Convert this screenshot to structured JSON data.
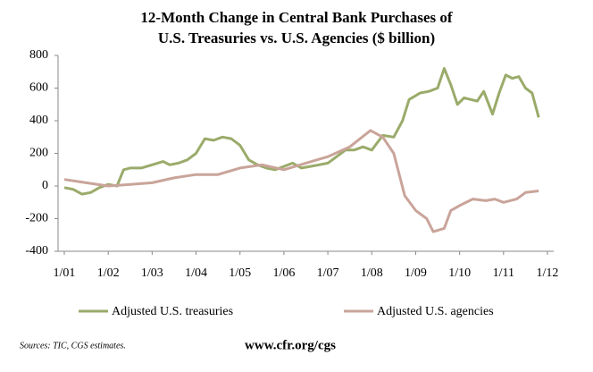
{
  "chart_data": {
    "type": "line",
    "title": "12-Month Change in Central Bank Purchases of",
    "subtitle": "U.S. Treasuries vs. U.S. Agencies ($ billion)",
    "xlim": [
      2001,
      2012
    ],
    "xticks": [
      {
        "value": 2001,
        "label": "1/01"
      },
      {
        "value": 2002,
        "label": "1/02"
      },
      {
        "value": 2003,
        "label": "1/03"
      },
      {
        "value": 2004,
        "label": "1/04"
      },
      {
        "value": 2005,
        "label": "1/05"
      },
      {
        "value": 2006,
        "label": "1/06"
      },
      {
        "value": 2007,
        "label": "1/07"
      },
      {
        "value": 2008,
        "label": "1/08"
      },
      {
        "value": 2009,
        "label": "1/09"
      },
      {
        "value": 2010,
        "label": "1/10"
      },
      {
        "value": 2011,
        "label": "1/11"
      },
      {
        "value": 2012,
        "label": "1/12"
      }
    ],
    "ylim": [
      -400,
      800
    ],
    "yticks": [
      -400,
      -200,
      0,
      200,
      400,
      600,
      800
    ],
    "series": [
      {
        "name": "Adjusted U.S. treasuries",
        "color": "#9aab6a",
        "x": [
          2001.0,
          2001.2,
          2001.4,
          2001.6,
          2001.8,
          2002.0,
          2002.2,
          2002.35,
          2002.5,
          2002.75,
          2003.0,
          2003.25,
          2003.4,
          2003.6,
          2003.8,
          2004.0,
          2004.2,
          2004.4,
          2004.6,
          2004.8,
          2005.0,
          2005.2,
          2005.4,
          2005.6,
          2005.8,
          2006.0,
          2006.2,
          2006.4,
          2006.6,
          2006.8,
          2007.0,
          2007.2,
          2007.4,
          2007.6,
          2007.8,
          2008.0,
          2008.25,
          2008.5,
          2008.7,
          2008.85,
          2009.1,
          2009.3,
          2009.5,
          2009.65,
          2009.8,
          2009.95,
          2010.1,
          2010.4,
          2010.55,
          2010.75,
          2010.9,
          2011.05,
          2011.2,
          2011.35,
          2011.5,
          2011.65,
          2011.8
        ],
        "values": [
          -10,
          -20,
          -50,
          -40,
          -10,
          10,
          0,
          100,
          110,
          110,
          130,
          150,
          130,
          140,
          160,
          200,
          290,
          280,
          300,
          290,
          250,
          160,
          130,
          110,
          100,
          120,
          140,
          110,
          120,
          130,
          140,
          180,
          220,
          220,
          240,
          220,
          310,
          300,
          400,
          530,
          570,
          580,
          600,
          720,
          620,
          500,
          540,
          520,
          580,
          440,
          570,
          680,
          660,
          670,
          600,
          570,
          420
        ]
      },
      {
        "name": "Adjusted U.S. agencies",
        "color": "#c9a49a",
        "x": [
          2001.0,
          2001.5,
          2002.0,
          2002.5,
          2003.0,
          2003.5,
          2004.0,
          2004.5,
          2005.0,
          2005.5,
          2006.0,
          2006.5,
          2007.0,
          2007.5,
          2007.97,
          2008.25,
          2008.5,
          2008.75,
          2009.0,
          2009.25,
          2009.4,
          2009.65,
          2009.8,
          2010.0,
          2010.3,
          2010.6,
          2010.8,
          2011.0,
          2011.3,
          2011.5,
          2011.8
        ],
        "values": [
          40,
          20,
          0,
          10,
          20,
          50,
          70,
          70,
          110,
          130,
          100,
          140,
          180,
          240,
          340,
          300,
          200,
          -60,
          -150,
          -200,
          -280,
          -260,
          -150,
          -120,
          -80,
          -90,
          -80,
          -100,
          -80,
          -40,
          -30
        ]
      }
    ],
    "source": "Sources: TIC, CGS estimates.",
    "url": "www.cfr.org/cgs"
  }
}
